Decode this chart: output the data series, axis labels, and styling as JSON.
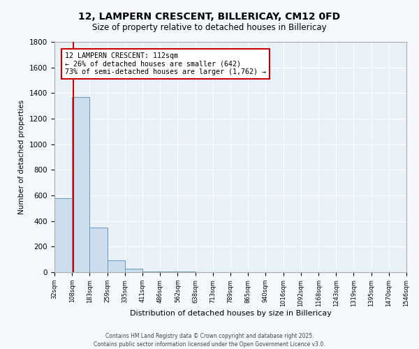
{
  "title_line1": "12, LAMPERN CRESCENT, BILLERICAY, CM12 0FD",
  "title_line2": "Size of property relative to detached houses in Billericay",
  "xlabel": "Distribution of detached houses by size in Billericay",
  "ylabel": "Number of detached properties",
  "bin_edges": [
    32,
    108,
    183,
    259,
    335,
    411,
    486,
    562,
    638,
    713,
    789,
    865,
    940,
    1016,
    1092,
    1168,
    1243,
    1319,
    1395,
    1470,
    1546
  ],
  "bar_heights": [
    580,
    1370,
    350,
    95,
    30,
    8,
    4,
    3,
    2,
    2,
    1,
    1,
    1,
    1,
    1,
    0,
    0,
    0,
    0,
    0
  ],
  "bar_color": "#ccdded",
  "bar_edge_color": "#6699bb",
  "property_size": 112,
  "annotation_line1": "12 LAMPERN CRESCENT: 112sqm",
  "annotation_line2": "← 26% of detached houses are smaller (642)",
  "annotation_line3": "73% of semi-detached houses are larger (1,762) →",
  "annotation_box_color": "#cc0000",
  "red_line_color": "#cc0000",
  "ylim": [
    0,
    1800
  ],
  "yticks": [
    0,
    200,
    400,
    600,
    800,
    1000,
    1200,
    1400,
    1600,
    1800
  ],
  "bg_color": "#ddeeff",
  "plot_bg_color": "#e8f0f8",
  "grid_color": "#ffffff",
  "fig_bg_color": "#f5f8fc",
  "footer_line1": "Contains HM Land Registry data © Crown copyright and database right 2025.",
  "footer_line2": "Contains public sector information licensed under the Open Government Licence v3.0.",
  "tick_labels": [
    "32sqm",
    "108sqm",
    "183sqm",
    "259sqm",
    "335sqm",
    "411sqm",
    "486sqm",
    "562sqm",
    "638sqm",
    "713sqm",
    "789sqm",
    "865sqm",
    "940sqm",
    "1016sqm",
    "1092sqm",
    "1168sqm",
    "1243sqm",
    "1319sqm",
    "1395sqm",
    "1470sqm",
    "1546sqm"
  ]
}
